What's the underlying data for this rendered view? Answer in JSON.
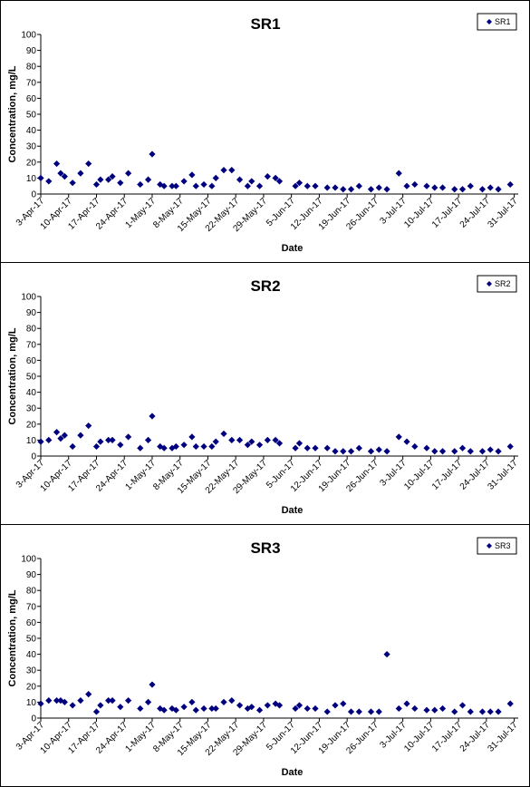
{
  "chart_data": [
    {
      "type": "scatter",
      "title": "SR1",
      "xlabel": "Date",
      "ylabel": "Concentration, mg/L",
      "ylim": [
        0,
        100
      ],
      "yticks": [
        0,
        10,
        20,
        30,
        40,
        50,
        60,
        70,
        80,
        90,
        100
      ],
      "xlim": [
        "2017-04-03",
        "2017-08-01"
      ],
      "xtick_labels": [
        "3-Apr-17",
        "10-Apr-17",
        "17-Apr-17",
        "24-Apr-17",
        "1-May-17",
        "8-May-17",
        "15-May-17",
        "22-May-17",
        "29-May-17",
        "5-Jun-17",
        "12-Jun-17",
        "19-Jun-17",
        "26-Jun-17",
        "3-Jul-17",
        "10-Jul-17",
        "17-Jul-17",
        "24-Jul-17",
        "31-Jul-17"
      ],
      "grid": false,
      "legend_position": "top-right",
      "marker_color": "#00007f",
      "series": [
        {
          "name": "SR1",
          "x": [
            "2017-04-03",
            "2017-04-05",
            "2017-04-07",
            "2017-04-08",
            "2017-04-09",
            "2017-04-11",
            "2017-04-13",
            "2017-04-15",
            "2017-04-17",
            "2017-04-18",
            "2017-04-20",
            "2017-04-21",
            "2017-04-23",
            "2017-04-25",
            "2017-04-28",
            "2017-04-30",
            "2017-05-01",
            "2017-05-03",
            "2017-05-04",
            "2017-05-06",
            "2017-05-07",
            "2017-05-09",
            "2017-05-11",
            "2017-05-12",
            "2017-05-14",
            "2017-05-16",
            "2017-05-17",
            "2017-05-19",
            "2017-05-21",
            "2017-05-23",
            "2017-05-25",
            "2017-05-26",
            "2017-05-28",
            "2017-05-30",
            "2017-06-01",
            "2017-06-02",
            "2017-06-06",
            "2017-06-07",
            "2017-06-09",
            "2017-06-11",
            "2017-06-14",
            "2017-06-16",
            "2017-06-18",
            "2017-06-20",
            "2017-06-22",
            "2017-06-25",
            "2017-06-27",
            "2017-06-29",
            "2017-07-02",
            "2017-07-04",
            "2017-07-06",
            "2017-07-09",
            "2017-07-11",
            "2017-07-13",
            "2017-07-16",
            "2017-07-18",
            "2017-07-20",
            "2017-07-23",
            "2017-07-25",
            "2017-07-27",
            "2017-07-30"
          ],
          "y": [
            10,
            8,
            19,
            13,
            11,
            7,
            13,
            19,
            6,
            9,
            9,
            11,
            7,
            13,
            6,
            9,
            25,
            6,
            5,
            5,
            5,
            8,
            12,
            5,
            6,
            5,
            10,
            15,
            15,
            9,
            5,
            8,
            5,
            11,
            10,
            8,
            5,
            7,
            5,
            5,
            4,
            4,
            3,
            3,
            5,
            3,
            4,
            3,
            13,
            5,
            6,
            5,
            4,
            4,
            3,
            3,
            5,
            3,
            4,
            3,
            6
          ]
        }
      ]
    },
    {
      "type": "scatter",
      "title": "SR2",
      "xlabel": "Date",
      "ylabel": "Concentration, mg/L",
      "ylim": [
        0,
        100
      ],
      "yticks": [
        0,
        10,
        20,
        30,
        40,
        50,
        60,
        70,
        80,
        90,
        100
      ],
      "xlim": [
        "2017-04-03",
        "2017-08-01"
      ],
      "xtick_labels": [
        "3-Apr-17",
        "10-Apr-17",
        "17-Apr-17",
        "24-Apr-17",
        "1-May-17",
        "8-May-17",
        "15-May-17",
        "22-May-17",
        "29-May-17",
        "5-Jun-17",
        "12-Jun-17",
        "19-Jun-17",
        "26-Jun-17",
        "3-Jul-17",
        "10-Jul-17",
        "17-Jul-17",
        "24-Jul-17",
        "31-Jul-17"
      ],
      "grid": false,
      "legend_position": "top-right",
      "marker_color": "#00007f",
      "series": [
        {
          "name": "SR2",
          "x": [
            "2017-04-03",
            "2017-04-05",
            "2017-04-07",
            "2017-04-08",
            "2017-04-09",
            "2017-04-11",
            "2017-04-13",
            "2017-04-15",
            "2017-04-17",
            "2017-04-18",
            "2017-04-20",
            "2017-04-21",
            "2017-04-23",
            "2017-04-25",
            "2017-04-28",
            "2017-04-30",
            "2017-05-01",
            "2017-05-03",
            "2017-05-04",
            "2017-05-06",
            "2017-05-07",
            "2017-05-09",
            "2017-05-11",
            "2017-05-12",
            "2017-05-14",
            "2017-05-16",
            "2017-05-17",
            "2017-05-19",
            "2017-05-21",
            "2017-05-23",
            "2017-05-25",
            "2017-05-26",
            "2017-05-28",
            "2017-05-30",
            "2017-06-01",
            "2017-06-02",
            "2017-06-06",
            "2017-06-07",
            "2017-06-09",
            "2017-06-11",
            "2017-06-14",
            "2017-06-16",
            "2017-06-18",
            "2017-06-20",
            "2017-06-22",
            "2017-06-25",
            "2017-06-27",
            "2017-06-29",
            "2017-07-02",
            "2017-07-04",
            "2017-07-06",
            "2017-07-09",
            "2017-07-11",
            "2017-07-13",
            "2017-07-16",
            "2017-07-18",
            "2017-07-20",
            "2017-07-23",
            "2017-07-25",
            "2017-07-27",
            "2017-07-30"
          ],
          "y": [
            9,
            10,
            15,
            11,
            13,
            6,
            13,
            19,
            6,
            9,
            10,
            10,
            7,
            12,
            5,
            10,
            25,
            6,
            5,
            5,
            6,
            7,
            12,
            6,
            6,
            6,
            9,
            14,
            10,
            10,
            7,
            9,
            7,
            10,
            10,
            8,
            5,
            8,
            5,
            5,
            5,
            3,
            3,
            3,
            5,
            3,
            4,
            3,
            12,
            9,
            6,
            5,
            3,
            3,
            3,
            5,
            3,
            3,
            4,
            3,
            6
          ]
        }
      ]
    },
    {
      "type": "scatter",
      "title": "SR3",
      "xlabel": "Date",
      "ylabel": "Concentration, mg/L",
      "ylim": [
        0,
        100
      ],
      "yticks": [
        0,
        10,
        20,
        30,
        40,
        50,
        60,
        70,
        80,
        90,
        100
      ],
      "xlim": [
        "2017-04-03",
        "2017-08-01"
      ],
      "xtick_labels": [
        "3-Apr-17",
        "10-Apr-17",
        "17-Apr-17",
        "24-Apr-17",
        "1-May-17",
        "8-May-17",
        "15-May-17",
        "22-May-17",
        "29-May-17",
        "5-Jun-17",
        "12-Jun-17",
        "19-Jun-17",
        "26-Jun-17",
        "3-Jul-17",
        "10-Jul-17",
        "17-Jul-17",
        "24-Jul-17",
        "31-Jul-17"
      ],
      "grid": false,
      "legend_position": "top-right",
      "marker_color": "#00007f",
      "series": [
        {
          "name": "SR3",
          "x": [
            "2017-04-03",
            "2017-04-05",
            "2017-04-07",
            "2017-04-08",
            "2017-04-09",
            "2017-04-11",
            "2017-04-13",
            "2017-04-15",
            "2017-04-17",
            "2017-04-18",
            "2017-04-20",
            "2017-04-21",
            "2017-04-23",
            "2017-04-25",
            "2017-04-28",
            "2017-04-30",
            "2017-05-01",
            "2017-05-03",
            "2017-05-04",
            "2017-05-06",
            "2017-05-07",
            "2017-05-09",
            "2017-05-11",
            "2017-05-12",
            "2017-05-14",
            "2017-05-16",
            "2017-05-17",
            "2017-05-19",
            "2017-05-21",
            "2017-05-23",
            "2017-05-25",
            "2017-05-26",
            "2017-05-28",
            "2017-05-30",
            "2017-06-01",
            "2017-06-02",
            "2017-06-06",
            "2017-06-07",
            "2017-06-09",
            "2017-06-11",
            "2017-06-14",
            "2017-06-16",
            "2017-06-18",
            "2017-06-20",
            "2017-06-22",
            "2017-06-25",
            "2017-06-27",
            "2017-06-29",
            "2017-07-02",
            "2017-07-04",
            "2017-07-06",
            "2017-07-09",
            "2017-07-11",
            "2017-07-13",
            "2017-07-16",
            "2017-07-18",
            "2017-07-20",
            "2017-07-23",
            "2017-07-25",
            "2017-07-27",
            "2017-07-30"
          ],
          "y": [
            9,
            11,
            11,
            11,
            10,
            8,
            11,
            15,
            4,
            8,
            11,
            11,
            7,
            11,
            6,
            10,
            21,
            6,
            5,
            6,
            5,
            7,
            10,
            5,
            6,
            6,
            6,
            10,
            11,
            8,
            6,
            7,
            5,
            8,
            9,
            8,
            6,
            8,
            6,
            6,
            4,
            8,
            9,
            4,
            4,
            4,
            4,
            40,
            6,
            9,
            6,
            5,
            5,
            6,
            4,
            8,
            4,
            4,
            4,
            4,
            9
          ]
        }
      ]
    }
  ]
}
